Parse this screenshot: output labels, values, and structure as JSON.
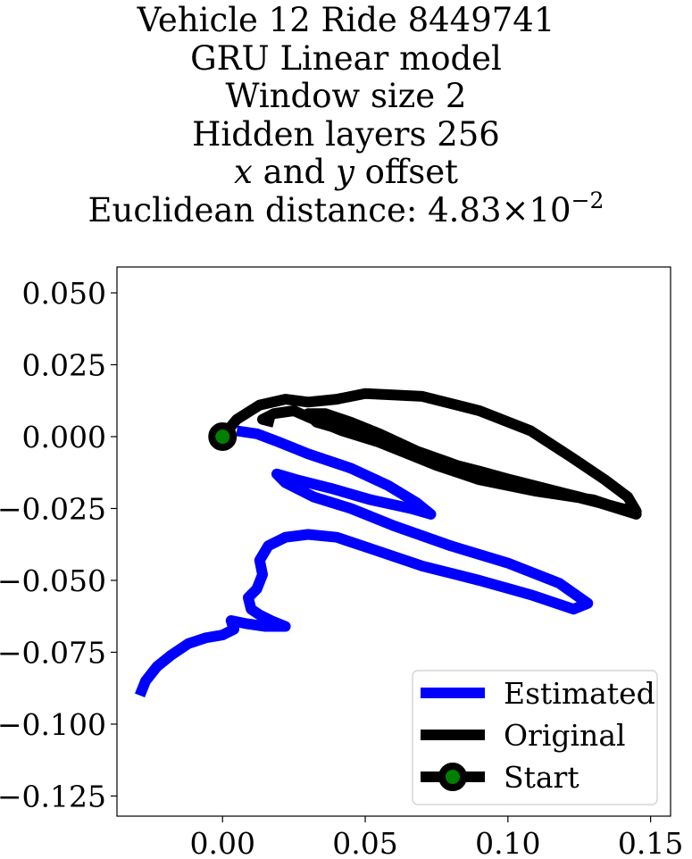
{
  "chart_data": {
    "type": "line",
    "title_lines": [
      "Vehicle 12 Ride 8449741",
      "GRU Linear model",
      "Window size 2",
      "Hidden layers 256"
    ],
    "offset_line": {
      "var_x": "x",
      "conjunction": "and",
      "var_y": "y",
      "suffix": "offset"
    },
    "distance_line": {
      "label": "Euclidean distance:",
      "mantissa": "4.83",
      "times": "×",
      "base": "10",
      "exponent": "−2"
    },
    "xlabel": "",
    "ylabel": "",
    "xlim": [
      -0.037,
      0.157
    ],
    "ylim": [
      -0.132,
      0.059
    ],
    "x_ticks": [
      0.0,
      0.05,
      0.1,
      0.15
    ],
    "x_tick_labels": [
      "0.00",
      "0.05",
      "0.10",
      "0.15"
    ],
    "y_ticks": [
      0.05,
      0.025,
      0.0,
      -0.025,
      -0.05,
      -0.075,
      -0.1,
      -0.125
    ],
    "y_tick_labels": [
      "0.050",
      "0.025",
      "0.000",
      "−0.025",
      "−0.050",
      "−0.075",
      "−0.100",
      "−0.125"
    ],
    "grid": false,
    "legend_position": "lower-right",
    "series": [
      {
        "name": "Estimated",
        "color": "#0000ff",
        "points": [
          [
            0.005,
            0.002
          ],
          [
            0.012,
            0.001
          ],
          [
            0.02,
            -0.002
          ],
          [
            0.03,
            -0.006
          ],
          [
            0.045,
            -0.011
          ],
          [
            0.058,
            -0.017
          ],
          [
            0.068,
            -0.023
          ],
          [
            0.073,
            -0.027
          ],
          [
            0.066,
            -0.025
          ],
          [
            0.052,
            -0.022
          ],
          [
            0.038,
            -0.018
          ],
          [
            0.026,
            -0.015
          ],
          [
            0.019,
            -0.013
          ],
          [
            0.022,
            -0.016
          ],
          [
            0.032,
            -0.021
          ],
          [
            0.045,
            -0.025
          ],
          [
            0.06,
            -0.031
          ],
          [
            0.08,
            -0.038
          ],
          [
            0.1,
            -0.044
          ],
          [
            0.118,
            -0.051
          ],
          [
            0.128,
            -0.058
          ],
          [
            0.123,
            -0.06
          ],
          [
            0.108,
            -0.055
          ],
          [
            0.09,
            -0.05
          ],
          [
            0.07,
            -0.045
          ],
          [
            0.052,
            -0.039
          ],
          [
            0.04,
            -0.035
          ],
          [
            0.03,
            -0.034
          ],
          [
            0.022,
            -0.035
          ],
          [
            0.016,
            -0.038
          ],
          [
            0.013,
            -0.043
          ],
          [
            0.014,
            -0.048
          ],
          [
            0.012,
            -0.053
          ],
          [
            0.009,
            -0.056
          ],
          [
            0.01,
            -0.06
          ],
          [
            0.013,
            -0.062
          ],
          [
            0.017,
            -0.064
          ],
          [
            0.022,
            -0.066
          ],
          [
            0.015,
            -0.066
          ],
          [
            0.008,
            -0.065
          ],
          [
            0.003,
            -0.064
          ],
          [
            0.004,
            -0.067
          ],
          [
            0.0,
            -0.069
          ],
          [
            -0.006,
            -0.07
          ],
          [
            -0.012,
            -0.072
          ],
          [
            -0.018,
            -0.076
          ],
          [
            -0.023,
            -0.08
          ],
          [
            -0.027,
            -0.085
          ],
          [
            -0.029,
            -0.09
          ]
        ]
      },
      {
        "name": "Original",
        "color": "#000000",
        "points": [
          [
            0.0,
            0.0
          ],
          [
            0.005,
            0.006
          ],
          [
            0.013,
            0.011
          ],
          [
            0.022,
            0.013
          ],
          [
            0.03,
            0.012
          ],
          [
            0.04,
            0.013
          ],
          [
            0.05,
            0.015
          ],
          [
            0.07,
            0.014
          ],
          [
            0.09,
            0.009
          ],
          [
            0.108,
            0.002
          ],
          [
            0.122,
            -0.007
          ],
          [
            0.134,
            -0.015
          ],
          [
            0.142,
            -0.021
          ],
          [
            0.145,
            -0.026
          ],
          [
            0.14,
            -0.025
          ],
          [
            0.125,
            -0.021
          ],
          [
            0.105,
            -0.016
          ],
          [
            0.085,
            -0.011
          ],
          [
            0.068,
            -0.005
          ],
          [
            0.055,
            0.001
          ],
          [
            0.045,
            0.005
          ],
          [
            0.036,
            0.008
          ],
          [
            0.03,
            0.008
          ],
          [
            0.033,
            0.005
          ],
          [
            0.04,
            0.003
          ],
          [
            0.05,
            0.0
          ],
          [
            0.06,
            -0.004
          ],
          [
            0.075,
            -0.01
          ],
          [
            0.09,
            -0.015
          ],
          [
            0.11,
            -0.019
          ],
          [
            0.13,
            -0.022
          ],
          [
            0.145,
            -0.027
          ],
          [
            0.132,
            -0.023
          ],
          [
            0.112,
            -0.018
          ],
          [
            0.09,
            -0.012
          ],
          [
            0.07,
            -0.007
          ],
          [
            0.055,
            -0.002
          ],
          [
            0.042,
            0.002
          ],
          [
            0.032,
            0.006
          ],
          [
            0.025,
            0.009
          ],
          [
            0.018,
            0.008
          ],
          [
            0.014,
            0.006
          ],
          [
            0.018,
            0.005
          ]
        ]
      },
      {
        "name": "Start",
        "color": "#000000",
        "marker_face": "#008000",
        "points": [
          [
            0.0,
            0.0
          ]
        ]
      }
    ]
  }
}
